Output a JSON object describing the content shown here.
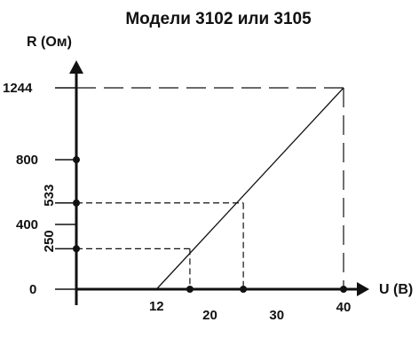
{
  "chart_data": {
    "type": "line",
    "title": "Модели 3102 или 3105",
    "xlabel": "U (В)",
    "ylabel": "R (Ом)",
    "xlim": [
      0,
      42
    ],
    "ylim": [
      0,
      1400
    ],
    "x_ticks": [
      {
        "value": 12,
        "label": "12"
      },
      {
        "value": 20,
        "label": "20"
      },
      {
        "value": 30,
        "label": "30"
      },
      {
        "value": 40,
        "label": "40"
      }
    ],
    "y_ticks": [
      {
        "value": 0,
        "label": "0"
      },
      {
        "value": 250,
        "label": "250",
        "rotated": true
      },
      {
        "value": 400,
        "label": "400"
      },
      {
        "value": 533,
        "label": "533",
        "rotated": true
      },
      {
        "value": 800,
        "label": "800"
      },
      {
        "value": 1244,
        "label": "1244"
      }
    ],
    "series": [
      {
        "x": [
          12,
          40
        ],
        "y": [
          0,
          1244
        ]
      }
    ],
    "reference_points": [
      {
        "x": 17,
        "y": 250
      },
      {
        "x": 25,
        "y": 533
      },
      {
        "x": 40,
        "y": 1244
      }
    ],
    "x_axis_markers": [
      17,
      25,
      40
    ],
    "y_axis_markers": [
      250,
      533,
      800
    ],
    "grid": false,
    "colors": {
      "line": "#111111",
      "axis": "#111111",
      "guide": "#111111"
    }
  }
}
